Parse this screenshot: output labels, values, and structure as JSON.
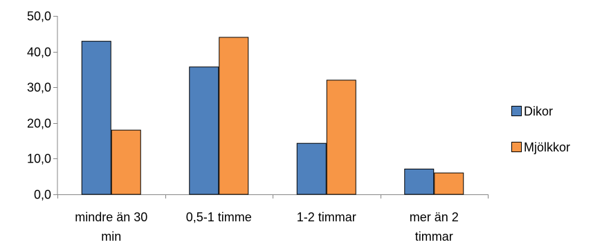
{
  "chart_data": {
    "type": "bar",
    "title": "",
    "xlabel": "",
    "ylabel": "",
    "categories": [
      [
        "mindre än 30",
        "min"
      ],
      [
        "0,5-1 timme"
      ],
      [
        "1-2 timmar"
      ],
      [
        "mer än 2",
        "timmar"
      ]
    ],
    "series": [
      {
        "name": "Dikor",
        "values": [
          42.9,
          35.7,
          14.3,
          7.1
        ],
        "color": "#4f81bd"
      },
      {
        "name": "Mjölkkor",
        "values": [
          18.0,
          44.0,
          32.0,
          6.0
        ],
        "color": "#f79646"
      }
    ],
    "ylim": [
      0,
      50
    ],
    "yticks": [
      "0,0",
      "10,0",
      "20,0",
      "30,0",
      "40,0",
      "50,0"
    ],
    "grid": false,
    "legend": "right"
  }
}
